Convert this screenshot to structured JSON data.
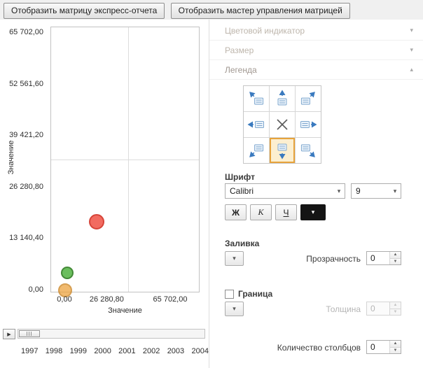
{
  "toolbar": {
    "buttons": [
      {
        "label": "Отобразить матрицу экспресс-отчета"
      },
      {
        "label": "Отобразить мастер управления матрицей"
      }
    ]
  },
  "chart_data": {
    "type": "scatter",
    "xlabel": "Значение",
    "ylabel": "Значение",
    "xlim": [
      0,
      65702
    ],
    "ylim": [
      0,
      65702
    ],
    "grid": true,
    "x_ticks": [
      {
        "value": 0,
        "label": "0,00"
      },
      {
        "value": 26280.8,
        "label": "26 280,80"
      },
      {
        "value": 65702,
        "label": "65 702,00"
      }
    ],
    "y_ticks": [
      {
        "value": 65702,
        "label": "65 702,00"
      },
      {
        "value": 52561.6,
        "label": "52 561,60"
      },
      {
        "value": 39421.2,
        "label": "39 421,20"
      },
      {
        "value": 26280.8,
        "label": "26 280,80"
      },
      {
        "value": 13140.4,
        "label": "13 140,40"
      },
      {
        "value": 0,
        "label": "0,00"
      }
    ],
    "points": [
      {
        "x": 19600,
        "y": 17500,
        "r": 11,
        "fill": "#f26458",
        "stroke": "#d43a2f",
        "opacity": 0.95
      },
      {
        "x": 1300,
        "y": 4400,
        "r": 9,
        "fill": "#5cb84d",
        "stroke": "#2f7d22",
        "opacity": 0.9
      },
      {
        "x": 0,
        "y": 0,
        "r": 10,
        "fill": "#eda43f",
        "stroke": "#c97f1a",
        "opacity": 0.75
      }
    ]
  },
  "timeline": {
    "years": [
      "1997",
      "1998",
      "1999",
      "2000",
      "2001",
      "2002",
      "2003",
      "2004"
    ]
  },
  "panel": {
    "sections": [
      {
        "label": "Цветовой индикатор",
        "expanded": false,
        "enabled": false
      },
      {
        "label": "Размер",
        "expanded": false,
        "enabled": false
      },
      {
        "label": "Легенда",
        "expanded": true,
        "enabled": true
      }
    ],
    "position_picker": {
      "cells": [
        {
          "dir": "up-left"
        },
        {
          "dir": "up"
        },
        {
          "dir": "up-right"
        },
        {
          "dir": "left"
        },
        {
          "dir": "none"
        },
        {
          "dir": "right"
        },
        {
          "dir": "down-left"
        },
        {
          "dir": "down",
          "selected": true
        },
        {
          "dir": "down-right"
        }
      ]
    },
    "font": {
      "label": "Шрифт",
      "family_value": "Calibri",
      "size_value": "9",
      "bold_label": "Ж",
      "italic_label": "К",
      "underline_label": "Ч"
    },
    "fill": {
      "label": "Заливка",
      "transparency_label": "Прозрачность",
      "transparency_value": "0"
    },
    "border": {
      "label": "Граница",
      "checked": false,
      "thickness_label": "Толщина",
      "thickness_value": "0"
    },
    "columns": {
      "label": "Количество столбцов",
      "value": "0"
    }
  },
  "icons": {
    "chevron_down": "▾",
    "chevron_up": "▴",
    "play": "▶",
    "spin_up": "▲",
    "spin_down": "▼"
  },
  "colors": {
    "selected_orange": "#e7a33b",
    "picker_arrow_blue": "#3a7abf",
    "picker_box_blue": "#7fa8cf",
    "picker_cross_gray": "#5a5a5a"
  }
}
